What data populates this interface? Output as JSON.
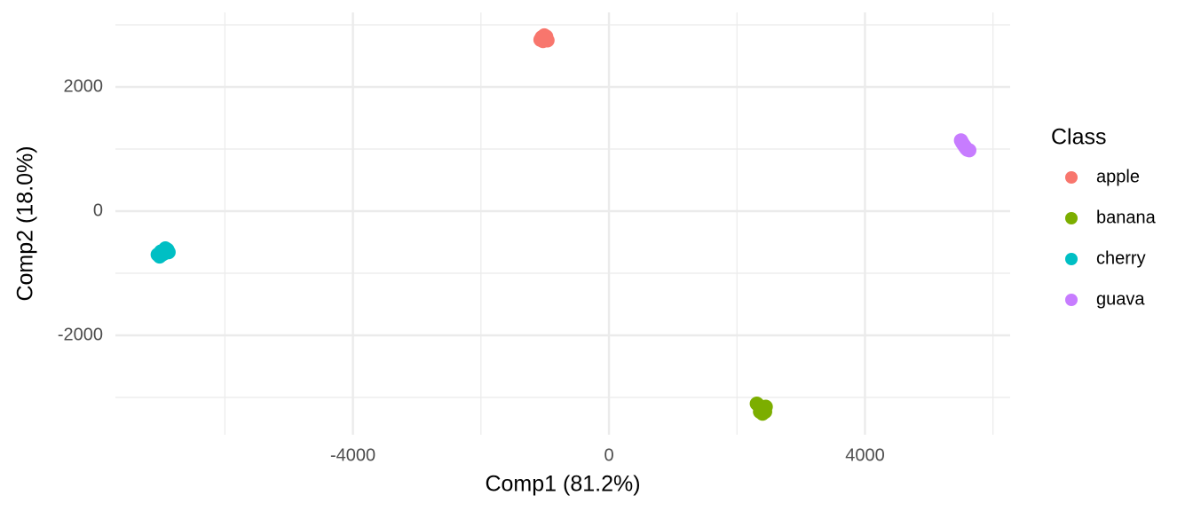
{
  "chart_data": {
    "type": "scatter",
    "x_label": "Comp1 (81.2%)",
    "y_label": "Comp2 (18.0%)",
    "legend_title": "Class",
    "legend_position": "right",
    "grid": true,
    "xlim": [
      -7711,
      6268
    ],
    "ylim": [
      -3600,
      3200
    ],
    "xticks": [
      -4000,
      0,
      4000
    ],
    "yticks": [
      -2000,
      0,
      2000
    ],
    "xticks_minor": [
      -6000,
      -2000,
      2000,
      6000
    ],
    "yticks_minor": [
      -3000,
      -1000,
      1000,
      3000
    ],
    "series": [
      {
        "name": "apple",
        "color": "#F8766D",
        "x": [
          -1050,
          -1000,
          -1030,
          -980,
          -1070,
          -1010,
          -960,
          -1040
        ],
        "values": [
          2800,
          2770,
          2740,
          2810,
          2760,
          2830,
          2750,
          2790
        ]
      },
      {
        "name": "banana",
        "color": "#7CAE00",
        "x": [
          2330,
          2380,
          2420,
          2360,
          2450,
          2400,
          2310,
          2440
        ],
        "values": [
          -3120,
          -3170,
          -3200,
          -3230,
          -3150,
          -3260,
          -3100,
          -3230
        ]
      },
      {
        "name": "cherry",
        "color": "#00BFC4",
        "x": [
          -7050,
          -7000,
          -6950,
          -6900,
          -7020,
          -6930,
          -6880,
          -6980
        ],
        "values": [
          -700,
          -650,
          -680,
          -620,
          -730,
          -600,
          -660,
          -700
        ]
      },
      {
        "name": "guava",
        "color": "#C77CFF",
        "x": [
          5500,
          5520,
          5540,
          5560,
          5580,
          5600,
          5630,
          5510
        ],
        "values": [
          1140,
          1100,
          1070,
          1040,
          1010,
          990,
          980,
          1120
        ]
      }
    ]
  }
}
